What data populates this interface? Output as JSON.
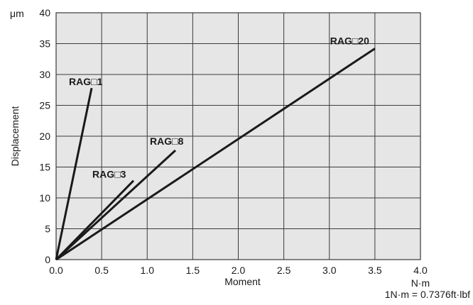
{
  "chart_data": {
    "type": "line",
    "title": "",
    "xlabel": "Moment",
    "xunit": "N·m",
    "ylabel": "Displacement",
    "yunit": "μm",
    "xlim": [
      0,
      4.0
    ],
    "ylim": [
      0,
      40
    ],
    "xticks": [
      "0.0",
      "0.5",
      "1.0",
      "1.5",
      "2.0",
      "2.5",
      "3.0",
      "3.5",
      "4.0"
    ],
    "yticks": [
      "0",
      "5",
      "10",
      "15",
      "20",
      "25",
      "30",
      "35",
      "40"
    ],
    "grid": true,
    "series": [
      {
        "name": "RAG□1",
        "x": [
          0,
          0.39
        ],
        "y": [
          0,
          27.8
        ]
      },
      {
        "name": "RAG□3",
        "x": [
          0,
          0.85
        ],
        "y": [
          0,
          12.8
        ]
      },
      {
        "name": "RAG□8",
        "x": [
          0,
          1.31
        ],
        "y": [
          0,
          17.7
        ]
      },
      {
        "name": "RAG□20",
        "x": [
          0,
          3.5
        ],
        "y": [
          0,
          34.2
        ]
      }
    ],
    "annotation": "1N·m = 0.7376ft·lbf",
    "line_color": "#1a1a1a",
    "grid_color": "#3a3a3a",
    "plot_background": "#e6e6e6"
  }
}
